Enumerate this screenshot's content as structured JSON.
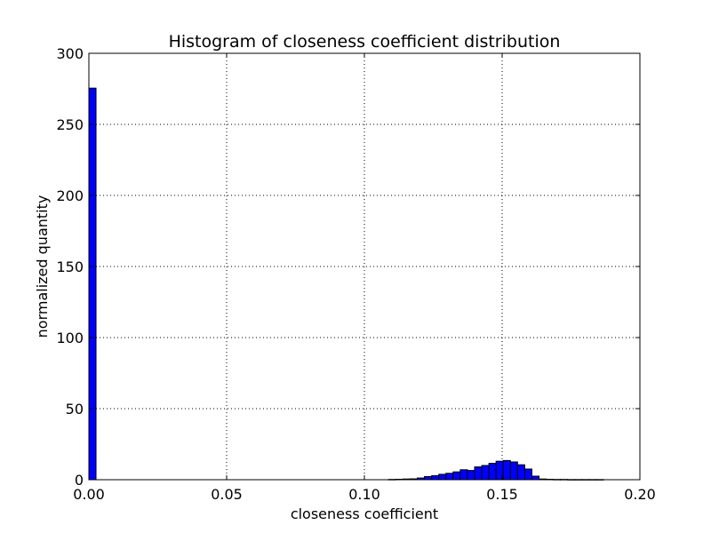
{
  "chart_data": {
    "type": "bar",
    "title": "Histogram of closeness coefficient distribution",
    "xlabel": "closeness coefficient",
    "ylabel": "normalized quantity",
    "xlim": [
      0.0,
      0.2
    ],
    "ylim": [
      0,
      300
    ],
    "x_ticks": [
      "0.00",
      "0.05",
      "0.10",
      "0.15",
      "0.20"
    ],
    "y_ticks": [
      "0",
      "50",
      "100",
      "150",
      "200",
      "250",
      "300"
    ],
    "grid": true,
    "bar_color": "#0000ff",
    "bin_width": 0.00259,
    "bins": [
      {
        "x": 0.0,
        "value": 275.5
      },
      {
        "x": 0.1088,
        "value": 0.2
      },
      {
        "x": 0.1114,
        "value": 0.3
      },
      {
        "x": 0.114,
        "value": 0.5
      },
      {
        "x": 0.1166,
        "value": 0.6
      },
      {
        "x": 0.1192,
        "value": 1.2
      },
      {
        "x": 0.1218,
        "value": 2.2
      },
      {
        "x": 0.1244,
        "value": 2.8
      },
      {
        "x": 0.127,
        "value": 3.8
      },
      {
        "x": 0.1296,
        "value": 4.5
      },
      {
        "x": 0.1322,
        "value": 5.5
      },
      {
        "x": 0.1348,
        "value": 7.0
      },
      {
        "x": 0.1374,
        "value": 6.5
      },
      {
        "x": 0.14,
        "value": 9.0
      },
      {
        "x": 0.1426,
        "value": 10.0
      },
      {
        "x": 0.1452,
        "value": 11.5
      },
      {
        "x": 0.1478,
        "value": 13.0
      },
      {
        "x": 0.1504,
        "value": 13.5
      },
      {
        "x": 0.153,
        "value": 12.5
      },
      {
        "x": 0.1556,
        "value": 10.5
      },
      {
        "x": 0.1582,
        "value": 7.5
      },
      {
        "x": 0.1608,
        "value": 2.5
      },
      {
        "x": 0.1634,
        "value": 0.5
      },
      {
        "x": 0.166,
        "value": 0.3
      },
      {
        "x": 0.1686,
        "value": 0.2
      },
      {
        "x": 0.1712,
        "value": 0.2
      },
      {
        "x": 0.1738,
        "value": 0.1
      },
      {
        "x": 0.1764,
        "value": 0.1
      },
      {
        "x": 0.179,
        "value": 0.1
      },
      {
        "x": 0.1816,
        "value": 0.1
      },
      {
        "x": 0.1842,
        "value": 0.1
      }
    ]
  }
}
